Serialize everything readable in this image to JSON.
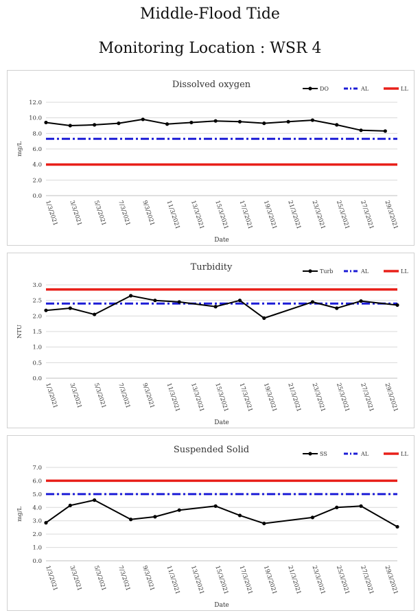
{
  "page": {
    "title": "Middle-Flood Tide",
    "subtitle": "Monitoring Location : WSR 4"
  },
  "chart_data": [
    {
      "type": "line",
      "title": "Dissolved oxygen",
      "xlabel": "Date",
      "ylabel": "mg/L",
      "ylim": [
        0,
        12
      ],
      "ystep": 2,
      "ytick_decimals": 1,
      "grid": true,
      "legend_position": "top-right",
      "x_ticks": [
        "1/3/2021",
        "3/3/2021",
        "5/3/2021",
        "7/3/2021",
        "9/3/2021",
        "11/3/2021",
        "13/3/2021",
        "15/3/2021",
        "17/3/2021",
        "19/3/2021",
        "21/3/2021",
        "23/3/2021",
        "25/3/2021",
        "27/3/2021",
        "29/3/2021"
      ],
      "x_start_day": 1,
      "x_end_day": 30,
      "series": [
        {
          "name": "DO",
          "color": "#000000",
          "style": "solid",
          "x": [
            1,
            3,
            5,
            7,
            9,
            11,
            13,
            15,
            17,
            19,
            21,
            23,
            25,
            27,
            29
          ],
          "values": [
            9.4,
            9.0,
            9.1,
            9.3,
            9.8,
            9.2,
            9.4,
            9.6,
            9.5,
            9.3,
            9.5,
            9.7,
            9.1,
            8.4,
            8.3
          ]
        },
        {
          "name": "AL",
          "color": "#1c1cd6",
          "style": "dashdot",
          "x": [
            1,
            30
          ],
          "values": [
            7.3,
            7.3
          ]
        },
        {
          "name": "LL",
          "color": "#e8201a",
          "style": "solid",
          "x": [
            1,
            30
          ],
          "values": [
            4.0,
            4.0
          ]
        }
      ]
    },
    {
      "type": "line",
      "title": "Turbidity",
      "xlabel": "Date",
      "ylabel": "NTU",
      "ylim": [
        0,
        3
      ],
      "ystep": 0.5,
      "ytick_decimals": 1,
      "grid": true,
      "legend_position": "top-right",
      "x_ticks": [
        "1/3/2021",
        "3/3/2021",
        "5/3/2021",
        "7/3/2021",
        "9/3/2021",
        "11/3/2021",
        "13/3/2021",
        "15/3/2021",
        "17/3/2021",
        "19/3/2021",
        "21/3/2021",
        "23/3/2021",
        "25/3/2021",
        "27/3/2021",
        "29/3/2021"
      ],
      "x_start_day": 1,
      "x_end_day": 30,
      "series": [
        {
          "name": "Turb",
          "color": "#000000",
          "style": "solid",
          "x": [
            1,
            3,
            5,
            8,
            10,
            12,
            15,
            17,
            19,
            23,
            25,
            27,
            30
          ],
          "values": [
            2.18,
            2.25,
            2.05,
            2.65,
            2.5,
            2.45,
            2.3,
            2.5,
            1.93,
            2.45,
            2.25,
            2.48,
            2.35
          ]
        },
        {
          "name": "AL",
          "color": "#1c1cd6",
          "style": "dashdot",
          "x": [
            1,
            30
          ],
          "values": [
            2.4,
            2.4
          ]
        },
        {
          "name": "LL",
          "color": "#e8201a",
          "style": "solid",
          "x": [
            1,
            30
          ],
          "values": [
            2.85,
            2.85
          ]
        }
      ]
    },
    {
      "type": "line",
      "title": "Suspended Solid",
      "xlabel": "Date",
      "ylabel": "mg/L",
      "ylim": [
        0,
        7
      ],
      "ystep": 1,
      "ytick_decimals": 1,
      "grid": true,
      "legend_position": "top-right",
      "x_ticks": [
        "1/3/2021",
        "3/3/2021",
        "5/3/2021",
        "7/3/2021",
        "9/3/2021",
        "11/3/2021",
        "13/3/2021",
        "15/3/2021",
        "17/3/2021",
        "19/3/2021",
        "21/3/2021",
        "23/3/2021",
        "25/3/2021",
        "27/3/2021",
        "29/3/2021"
      ],
      "x_start_day": 1,
      "x_end_day": 30,
      "series": [
        {
          "name": "SS",
          "color": "#000000",
          "style": "solid",
          "x": [
            1,
            3,
            5,
            8,
            10,
            12,
            15,
            17,
            19,
            23,
            25,
            27,
            30
          ],
          "values": [
            2.85,
            4.15,
            4.55,
            3.1,
            3.3,
            3.8,
            4.1,
            3.4,
            2.8,
            3.25,
            4.0,
            4.1,
            2.55
          ]
        },
        {
          "name": "AL",
          "color": "#1c1cd6",
          "style": "dashdot",
          "x": [
            1,
            30
          ],
          "values": [
            5.0,
            5.0
          ]
        },
        {
          "name": "LL",
          "color": "#e8201a",
          "style": "solid",
          "x": [
            1,
            30
          ],
          "values": [
            6.0,
            6.0
          ]
        }
      ]
    }
  ]
}
